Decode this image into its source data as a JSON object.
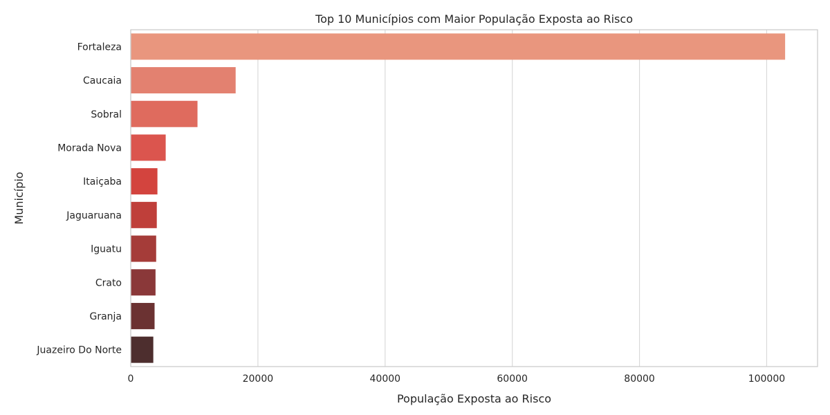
{
  "chart_data": {
    "type": "bar",
    "orientation": "horizontal",
    "title": "Top 10 Municípios com Maior População Exposta ao Risco",
    "xlabel": "População Exposta ao Risco",
    "ylabel": "Município",
    "xlim": [
      0,
      108000
    ],
    "xticks": [
      0,
      20000,
      40000,
      60000,
      80000,
      100000
    ],
    "xtick_labels": [
      "0",
      "20000",
      "40000",
      "60000",
      "80000",
      "100000"
    ],
    "grid": true,
    "categories": [
      "Fortaleza",
      "Caucaia",
      "Sobral",
      "Morada Nova",
      "Itaiçaba",
      "Jaguaruana",
      "Iguatu",
      "Crato",
      "Granja",
      "Juazeiro Do Norte"
    ],
    "values": [
      102900,
      16500,
      10500,
      5500,
      4200,
      4100,
      4000,
      3900,
      3750,
      3550
    ],
    "colors": [
      "#e9967e",
      "#e38170",
      "#df6b5e",
      "#db554e",
      "#d3443e",
      "#bf3f3a",
      "#a53c39",
      "#8a3839",
      "#6b3232",
      "#4d2e2e"
    ]
  }
}
